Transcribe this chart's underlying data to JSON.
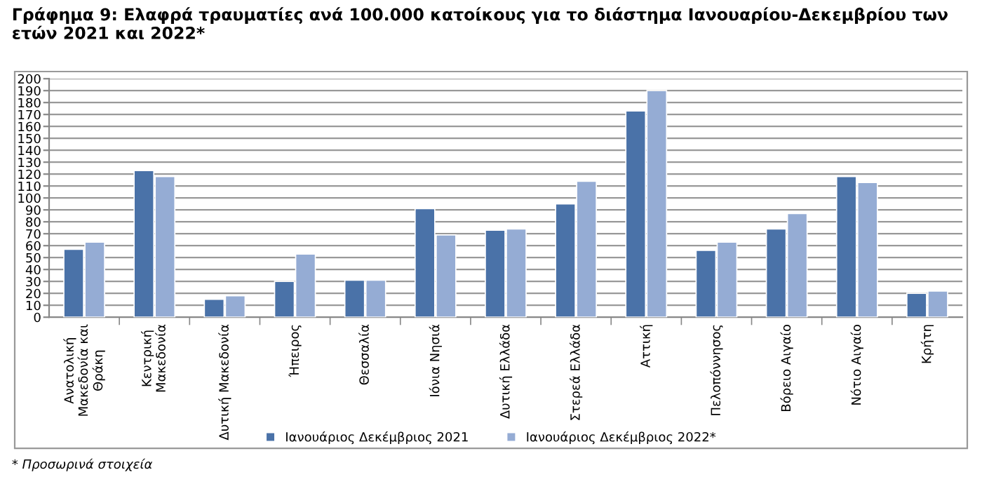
{
  "chart_data": {
    "type": "bar",
    "title": "Γράφημα 9: Ελαφρά τραυματίες ανά 100.000 κατοίκους για το διάστημα Ιανουαρίου-Δεκεμβρίου των ετών 2021 και 2022*",
    "categories": [
      "Ανατολική\nΜακεδονία και\nΘράκη",
      "Κεντρική\nΜακεδονία",
      "Δυτική Μακεδονία",
      "Ήπειρος",
      "Θεσσαλία",
      "Ιόνια Νησιά",
      "Δυτική Ελλάδα",
      "Στερεά Ελλάδα",
      "Αττική",
      "Πελοπόννησος",
      "Βόρειο Αιγαίο",
      "Νότιο Αιγαίο",
      "Κρήτη"
    ],
    "series": [
      {
        "name": "Ιανουάριος Δεκέμβριος 2021",
        "color": "#4a72a8",
        "values": [
          57,
          123,
          15,
          30,
          31,
          91,
          73,
          95,
          173,
          56,
          74,
          118,
          20
        ]
      },
      {
        "name": "Ιανουάριος Δεκέμβριος 2022*",
        "color": "#95acd4",
        "values": [
          63,
          118,
          18,
          53,
          31,
          69,
          74,
          114,
          190,
          63,
          87,
          113,
          22
        ]
      }
    ],
    "ylim": [
      0,
      200
    ],
    "yticks": [
      0,
      10,
      20,
      30,
      40,
      50,
      60,
      70,
      80,
      90,
      100,
      110,
      120,
      130,
      140,
      150,
      160,
      170,
      180,
      190,
      200
    ],
    "grid": "y",
    "legend": "bottom",
    "annotations": [
      "* Προσωρινά στοιχεία"
    ]
  }
}
